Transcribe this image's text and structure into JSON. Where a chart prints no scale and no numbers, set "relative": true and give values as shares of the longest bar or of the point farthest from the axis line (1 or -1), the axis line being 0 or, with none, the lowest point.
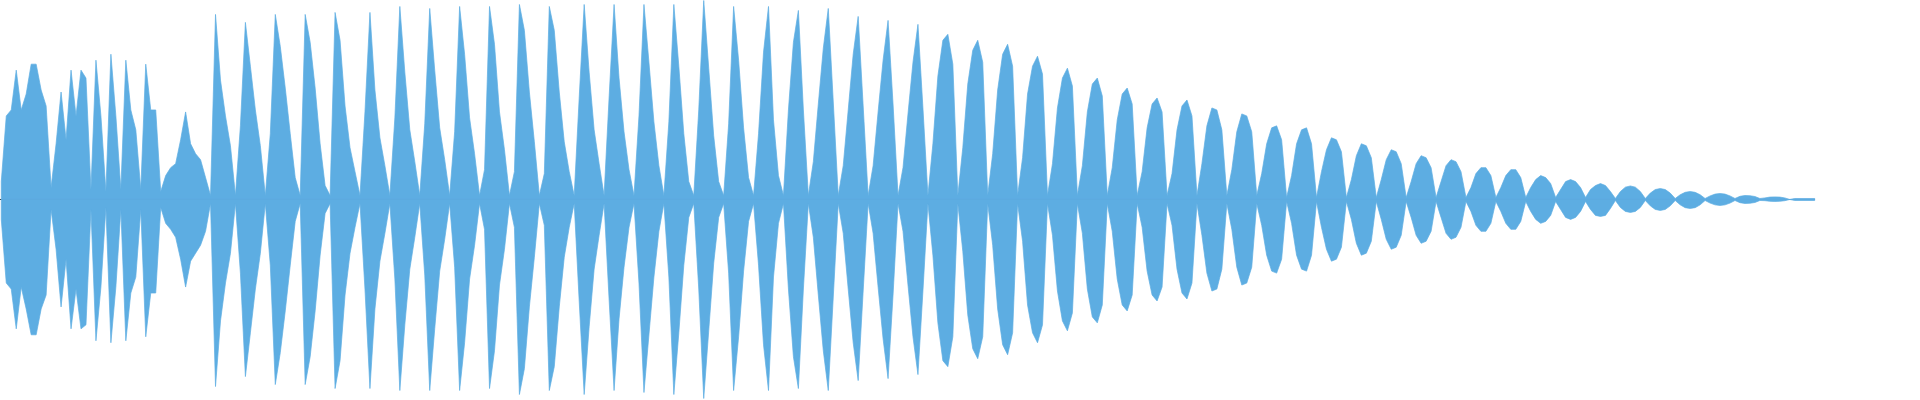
{
  "chart_data": {
    "type": "area",
    "relative": true,
    "categories": [
      null,
      null,
      null,
      null,
      null,
      null,
      null,
      null,
      null,
      null,
      null,
      null,
      null,
      null,
      null,
      null,
      null,
      null,
      null,
      null,
      null,
      null,
      null,
      null,
      null,
      null,
      null,
      null,
      null,
      null,
      null,
      null,
      null,
      null,
      null,
      null,
      null,
      null,
      null,
      null,
      null,
      null,
      null,
      null,
      null,
      null,
      null,
      null,
      null,
      null,
      null,
      null,
      null,
      null,
      null,
      null,
      null,
      null,
      null,
      null,
      null,
      null,
      null,
      null,
      null,
      null,
      null,
      null,
      null,
      null,
      null,
      null,
      null,
      null,
      null,
      null,
      null,
      null,
      null,
      null,
      null,
      null,
      null,
      null,
      null,
      null,
      null,
      null,
      null,
      null,
      null,
      null,
      null,
      null,
      null,
      null,
      null,
      null,
      null,
      null,
      null,
      null,
      null,
      null,
      null,
      null,
      null,
      null,
      null,
      null,
      null,
      null,
      null,
      null,
      null,
      null,
      null,
      null,
      null,
      null,
      null,
      null,
      null,
      null,
      null,
      null,
      null,
      null,
      null,
      null,
      null,
      null,
      null,
      null,
      null,
      null,
      null,
      null,
      null,
      null,
      null,
      null,
      null,
      null,
      null,
      null,
      null,
      null,
      null,
      null,
      null,
      null,
      null,
      null,
      null,
      null,
      null,
      null,
      null,
      null,
      null,
      null,
      null,
      null,
      null,
      null,
      null,
      null,
      null,
      null,
      null,
      null,
      null,
      null,
      null,
      null,
      null,
      null,
      null,
      null,
      null,
      null,
      null,
      null,
      null,
      null,
      null,
      null,
      null,
      null,
      null,
      null,
      null,
      null,
      null,
      null,
      null,
      null,
      null,
      null,
      null,
      null,
      null,
      null,
      null,
      null,
      null,
      null,
      null,
      null,
      null,
      null,
      null,
      null,
      null,
      null,
      null,
      null,
      null,
      null,
      null,
      null,
      null,
      null,
      null,
      null,
      null,
      null,
      null,
      null,
      null,
      null,
      null,
      null,
      null,
      null,
      null,
      null,
      null,
      null,
      null,
      null,
      null,
      null,
      null,
      null,
      null,
      null,
      null,
      null,
      null,
      null,
      null,
      null,
      null,
      null,
      null,
      null,
      null,
      null,
      null,
      null,
      null,
      null,
      null,
      null,
      null,
      null,
      null,
      null,
      null,
      null,
      null,
      null,
      null,
      null,
      null,
      null,
      null,
      null,
      null,
      null,
      null,
      null,
      null,
      null,
      null,
      null,
      null,
      null,
      null,
      null,
      null,
      null,
      null,
      null,
      null,
      null,
      null,
      null,
      null,
      null,
      null,
      null,
      null,
      null,
      null,
      null,
      null,
      null,
      null,
      null,
      null,
      null,
      null,
      null,
      null,
      null,
      null,
      null,
      null,
      null,
      null,
      null,
      null,
      null,
      null,
      null,
      null,
      null,
      null,
      null,
      null,
      null,
      null,
      null,
      null,
      null,
      null,
      null,
      null,
      null,
      null,
      null,
      null,
      null,
      null,
      null,
      null,
      null,
      null,
      null,
      null,
      null,
      null,
      null,
      null,
      null,
      null,
      null,
      null,
      null,
      null,
      null,
      null
    ],
    "series": [
      {
        "color": "#5dade2",
        "values": [
          0.09,
          0.42,
          0.45,
          0.65,
          0.45,
          0.53,
          0.68,
          0.68,
          0.55,
          0.47,
          0.06,
          0.28,
          0.54,
          0.3,
          0.65,
          0.42,
          0.65,
          0.61,
          0.05,
          0.7,
          0.42,
          0.04,
          0.73,
          0.42,
          0.05,
          0.7,
          0.45,
          0.35,
          0.05,
          0.68,
          0.45,
          0.45,
          0.04,
          0.12,
          0.16,
          0.18,
          0.3,
          0.44,
          0.28,
          0.23,
          0.2,
          0.11,
          0.02,
          0.93,
          0.6,
          0.42,
          0.27,
          0.02,
          0.37,
          0.89,
          0.67,
          0.45,
          0.27,
          0.02,
          0.33,
          0.93,
          0.77,
          0.56,
          0.33,
          0.11,
          0.02,
          0.93,
          0.79,
          0.56,
          0.28,
          0.07,
          0.02,
          0.94,
          0.8,
          0.47,
          0.26,
          0.14,
          0.02,
          0.44,
          0.94,
          0.55,
          0.31,
          0.17,
          0.02,
          0.41,
          0.97,
          0.64,
          0.35,
          0.19,
          0.02,
          0.38,
          0.96,
          0.65,
          0.36,
          0.2,
          0.02,
          0.34,
          0.97,
          0.73,
          0.41,
          0.23,
          0.02,
          0.15,
          0.97,
          0.78,
          0.44,
          0.25,
          0.02,
          0.14,
          0.98,
          0.85,
          0.54,
          0.29,
          0.02,
          0.13,
          0.97,
          0.85,
          0.54,
          0.29,
          0.14,
          0.02,
          0.51,
          0.98,
          0.64,
          0.35,
          0.18,
          0.02,
          0.51,
          0.98,
          0.61,
          0.34,
          0.15,
          0.02,
          0.42,
          0.98,
          0.69,
          0.39,
          0.17,
          0.02,
          0.39,
          0.98,
          0.67,
          0.33,
          0.09,
          0.02,
          0.45,
          1.0,
          0.66,
          0.32,
          0.09,
          0.02,
          0.38,
          0.97,
          0.7,
          0.36,
          0.11,
          0.02,
          0.33,
          0.74,
          0.97,
          0.4,
          0.12,
          0.02,
          0.45,
          0.79,
          0.95,
          0.45,
          0.02,
          0.19,
          0.48,
          0.76,
          0.96,
          0.49,
          0.02,
          0.17,
          0.45,
          0.73,
          0.92,
          0.47,
          0.02,
          0.17,
          0.44,
          0.7,
          0.9,
          0.48,
          0.02,
          0.16,
          0.43,
          0.69,
          0.88,
          0.46,
          0.02,
          0.28,
          0.62,
          0.8,
          0.83,
          0.68,
          0.02,
          0.26,
          0.58,
          0.75,
          0.8,
          0.69,
          0.02,
          0.23,
          0.55,
          0.73,
          0.78,
          0.67,
          0.02,
          0.21,
          0.53,
          0.67,
          0.72,
          0.63,
          0.02,
          0.18,
          0.46,
          0.61,
          0.66,
          0.57,
          0.02,
          0.17,
          0.44,
          0.58,
          0.61,
          0.52,
          0.02,
          0.16,
          0.4,
          0.53,
          0.56,
          0.48,
          0.02,
          0.14,
          0.36,
          0.48,
          0.51,
          0.44,
          0.02,
          0.13,
          0.35,
          0.47,
          0.5,
          0.42,
          0.02,
          0.18,
          0.37,
          0.46,
          0.45,
          0.35,
          0.02,
          0.15,
          0.34,
          0.43,
          0.42,
          0.34,
          0.02,
          0.13,
          0.28,
          0.36,
          0.37,
          0.3,
          0.01,
          0.12,
          0.28,
          0.35,
          0.36,
          0.28,
          0.01,
          0.14,
          0.25,
          0.31,
          0.3,
          0.24,
          0.01,
          0.1,
          0.22,
          0.28,
          0.27,
          0.21,
          0.01,
          0.1,
          0.2,
          0.25,
          0.24,
          0.18,
          0.01,
          0.09,
          0.18,
          0.22,
          0.21,
          0.16,
          0.01,
          0.09,
          0.17,
          0.2,
          0.19,
          0.14,
          0.01,
          0.06,
          0.13,
          0.16,
          0.16,
          0.12,
          0.01,
          0.06,
          0.12,
          0.15,
          0.15,
          0.11,
          0.01,
          0.06,
          0.1,
          0.12,
          0.11,
          0.08,
          0.01,
          0.05,
          0.09,
          0.1,
          0.09,
          0.06,
          0.01,
          0.05,
          0.07,
          0.08,
          0.07,
          0.04,
          0.005,
          0.04,
          0.062,
          0.068,
          0.062,
          0.04,
          0.005,
          0.032,
          0.05,
          0.055,
          0.05,
          0.032,
          0.005,
          0.024,
          0.036,
          0.04,
          0.036,
          0.024,
          0.005,
          0.018,
          0.027,
          0.03,
          0.027,
          0.018,
          0.005,
          0.016,
          0.02,
          0.019,
          0.015,
          0.005,
          0.008,
          0.012,
          0.013,
          0.012,
          0.008,
          0,
          0.005,
          0.005,
          0.005,
          0.005,
          0.005
        ]
      },
      {
        "color": "#5dade2",
        "values": [
          -0.1,
          -0.42,
          -0.45,
          -0.65,
          -0.44,
          -0.55,
          -0.68,
          -0.68,
          -0.55,
          -0.48,
          -0.05,
          -0.25,
          -0.54,
          -0.3,
          -0.65,
          -0.45,
          -0.65,
          -0.63,
          -0.05,
          -0.71,
          -0.44,
          -0.04,
          -0.72,
          -0.44,
          -0.05,
          -0.71,
          -0.47,
          -0.39,
          -0.05,
          -0.69,
          -0.47,
          -0.47,
          -0.04,
          -0.12,
          -0.15,
          -0.19,
          -0.3,
          -0.44,
          -0.31,
          -0.27,
          -0.23,
          -0.16,
          -0.02,
          -0.94,
          -0.61,
          -0.42,
          -0.27,
          -0.02,
          -0.37,
          -0.89,
          -0.67,
          -0.45,
          -0.27,
          -0.02,
          -0.33,
          -0.93,
          -0.77,
          -0.56,
          -0.33,
          -0.11,
          -0.02,
          -0.93,
          -0.79,
          -0.56,
          -0.28,
          -0.07,
          -0.02,
          -0.95,
          -0.81,
          -0.48,
          -0.27,
          -0.14,
          -0.02,
          -0.45,
          -0.95,
          -0.55,
          -0.31,
          -0.17,
          -0.02,
          -0.4,
          -0.96,
          -0.63,
          -0.35,
          -0.19,
          -0.02,
          -0.38,
          -0.96,
          -0.65,
          -0.36,
          -0.2,
          -0.02,
          -0.34,
          -0.96,
          -0.72,
          -0.4,
          -0.23,
          -0.02,
          -0.15,
          -0.95,
          -0.76,
          -0.43,
          -0.25,
          -0.02,
          -0.14,
          -0.98,
          -0.85,
          -0.54,
          -0.29,
          -0.02,
          -0.13,
          -0.96,
          -0.84,
          -0.54,
          -0.29,
          -0.14,
          -0.02,
          -0.51,
          -0.98,
          -0.64,
          -0.35,
          -0.18,
          -0.02,
          -0.5,
          -0.96,
          -0.6,
          -0.34,
          -0.14,
          -0.02,
          -0.42,
          -0.97,
          -0.68,
          -0.39,
          -0.16,
          -0.02,
          -0.39,
          -0.98,
          -0.67,
          -0.33,
          -0.09,
          -0.02,
          -0.45,
          -1.0,
          -0.66,
          -0.32,
          -0.09,
          -0.02,
          -0.37,
          -0.96,
          -0.69,
          -0.36,
          -0.11,
          -0.02,
          -0.33,
          -0.73,
          -0.96,
          -0.39,
          -0.12,
          -0.02,
          -0.45,
          -0.79,
          -0.95,
          -0.45,
          -0.02,
          -0.19,
          -0.48,
          -0.76,
          -0.96,
          -0.49,
          -0.02,
          -0.17,
          -0.45,
          -0.72,
          -0.91,
          -0.46,
          -0.02,
          -0.17,
          -0.44,
          -0.7,
          -0.9,
          -0.48,
          -0.02,
          -0.16,
          -0.43,
          -0.69,
          -0.88,
          -0.46,
          -0.02,
          -0.28,
          -0.62,
          -0.81,
          -0.84,
          -0.69,
          -0.02,
          -0.26,
          -0.58,
          -0.75,
          -0.8,
          -0.69,
          -0.02,
          -0.23,
          -0.55,
          -0.73,
          -0.78,
          -0.67,
          -0.02,
          -0.21,
          -0.53,
          -0.67,
          -0.72,
          -0.63,
          -0.02,
          -0.18,
          -0.46,
          -0.61,
          -0.66,
          -0.57,
          -0.02,
          -0.17,
          -0.45,
          -0.59,
          -0.62,
          -0.53,
          -0.02,
          -0.16,
          -0.4,
          -0.53,
          -0.56,
          -0.48,
          -0.02,
          -0.14,
          -0.36,
          -0.48,
          -0.51,
          -0.44,
          -0.02,
          -0.13,
          -0.35,
          -0.47,
          -0.5,
          -0.42,
          -0.02,
          -0.18,
          -0.37,
          -0.46,
          -0.45,
          -0.35,
          -0.02,
          -0.15,
          -0.34,
          -0.43,
          -0.42,
          -0.34,
          -0.02,
          -0.13,
          -0.28,
          -0.36,
          -0.37,
          -0.3,
          -0.01,
          -0.12,
          -0.28,
          -0.35,
          -0.36,
          -0.28,
          -0.01,
          -0.14,
          -0.25,
          -0.31,
          -0.3,
          -0.24,
          -0.01,
          -0.1,
          -0.22,
          -0.28,
          -0.27,
          -0.21,
          -0.01,
          -0.1,
          -0.2,
          -0.25,
          -0.24,
          -0.18,
          -0.01,
          -0.09,
          -0.18,
          -0.22,
          -0.21,
          -0.16,
          -0.01,
          -0.09,
          -0.17,
          -0.2,
          -0.19,
          -0.14,
          -0.01,
          -0.06,
          -0.13,
          -0.16,
          -0.16,
          -0.12,
          -0.01,
          -0.06,
          -0.12,
          -0.15,
          -0.15,
          -0.11,
          -0.01,
          -0.06,
          -0.1,
          -0.12,
          -0.11,
          -0.08,
          -0.01,
          -0.05,
          -0.09,
          -0.1,
          -0.09,
          -0.06,
          -0.01,
          -0.05,
          -0.08,
          -0.085,
          -0.08,
          -0.045,
          -0.005,
          -0.04,
          -0.06,
          -0.065,
          -0.06,
          -0.04,
          -0.005,
          -0.032,
          -0.05,
          -0.055,
          -0.05,
          -0.032,
          -0.005,
          -0.027,
          -0.041,
          -0.045,
          -0.041,
          -0.027,
          -0.005,
          -0.018,
          -0.027,
          -0.03,
          -0.027,
          -0.018,
          -0.005,
          -0.016,
          -0.02,
          -0.019,
          -0.015,
          -0.005,
          -0.006,
          -0.009,
          -0.01,
          -0.009,
          -0.006,
          0,
          -0.005,
          -0.005,
          -0.005,
          -0.005,
          -0.005
        ]
      }
    ]
  }
}
